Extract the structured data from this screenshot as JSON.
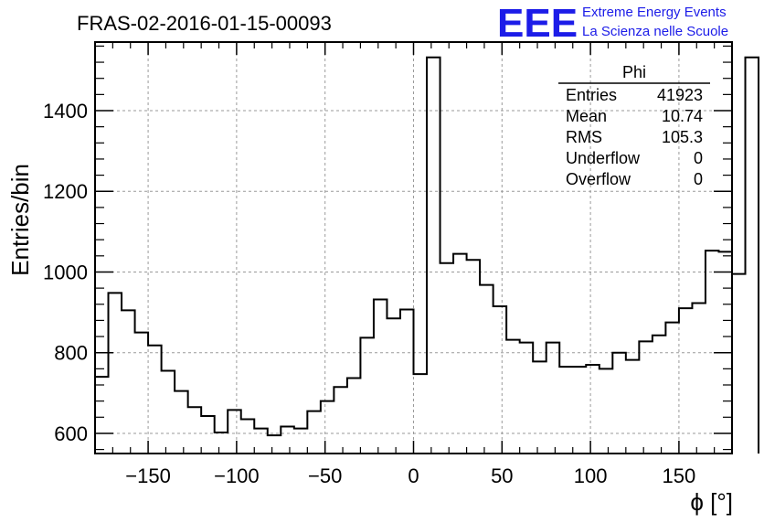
{
  "chart_data": {
    "type": "histogram",
    "title": "FRAS-02-2016-01-15-00093",
    "xlabel": "ϕ [°]",
    "ylabel": "Entries/bin",
    "xlim": [
      -180,
      180
    ],
    "ylim": [
      550,
      1570
    ],
    "grid": true,
    "x_ticks": [
      -150,
      -100,
      -50,
      0,
      50,
      100,
      150
    ],
    "x_tick_labels": [
      "−150",
      "−100",
      "−50",
      "0",
      "50",
      "100",
      "150"
    ],
    "y_ticks": [
      600,
      800,
      1000,
      1200,
      1400
    ],
    "y_tick_labels": [
      "600",
      "800",
      "1000",
      "1200",
      "1400"
    ],
    "bin_edges_start": -180,
    "bin_width": 7.5,
    "values": [
      740,
      948,
      905,
      850,
      818,
      755,
      705,
      665,
      643,
      602,
      658,
      635,
      612,
      595,
      617,
      612,
      655,
      680,
      715,
      737,
      837,
      932,
      885,
      907,
      747,
      1532,
      1022,
      1045,
      1030,
      968,
      915,
      832,
      825,
      778,
      825,
      765,
      765,
      770,
      760,
      800,
      782,
      828,
      843,
      875,
      910,
      923,
      1053,
      1050,
      995,
      1532
    ],
    "stats": {
      "name": "Phi",
      "rows": [
        {
          "label": "Entries",
          "value": "41923"
        },
        {
          "label": "Mean",
          "value": "10.74"
        },
        {
          "label": "RMS",
          "value": "105.3"
        },
        {
          "label": "Underflow",
          "value": "0"
        },
        {
          "label": "Overflow",
          "value": "0"
        }
      ]
    }
  },
  "logo": {
    "mark": "EEE",
    "line1": "Extreme Energy Events",
    "line2": "La Scienza nelle Scuole"
  },
  "colors": {
    "histogram_line": "#000000",
    "grid": "#9a9a9a",
    "logo": "#1c1ce8"
  }
}
